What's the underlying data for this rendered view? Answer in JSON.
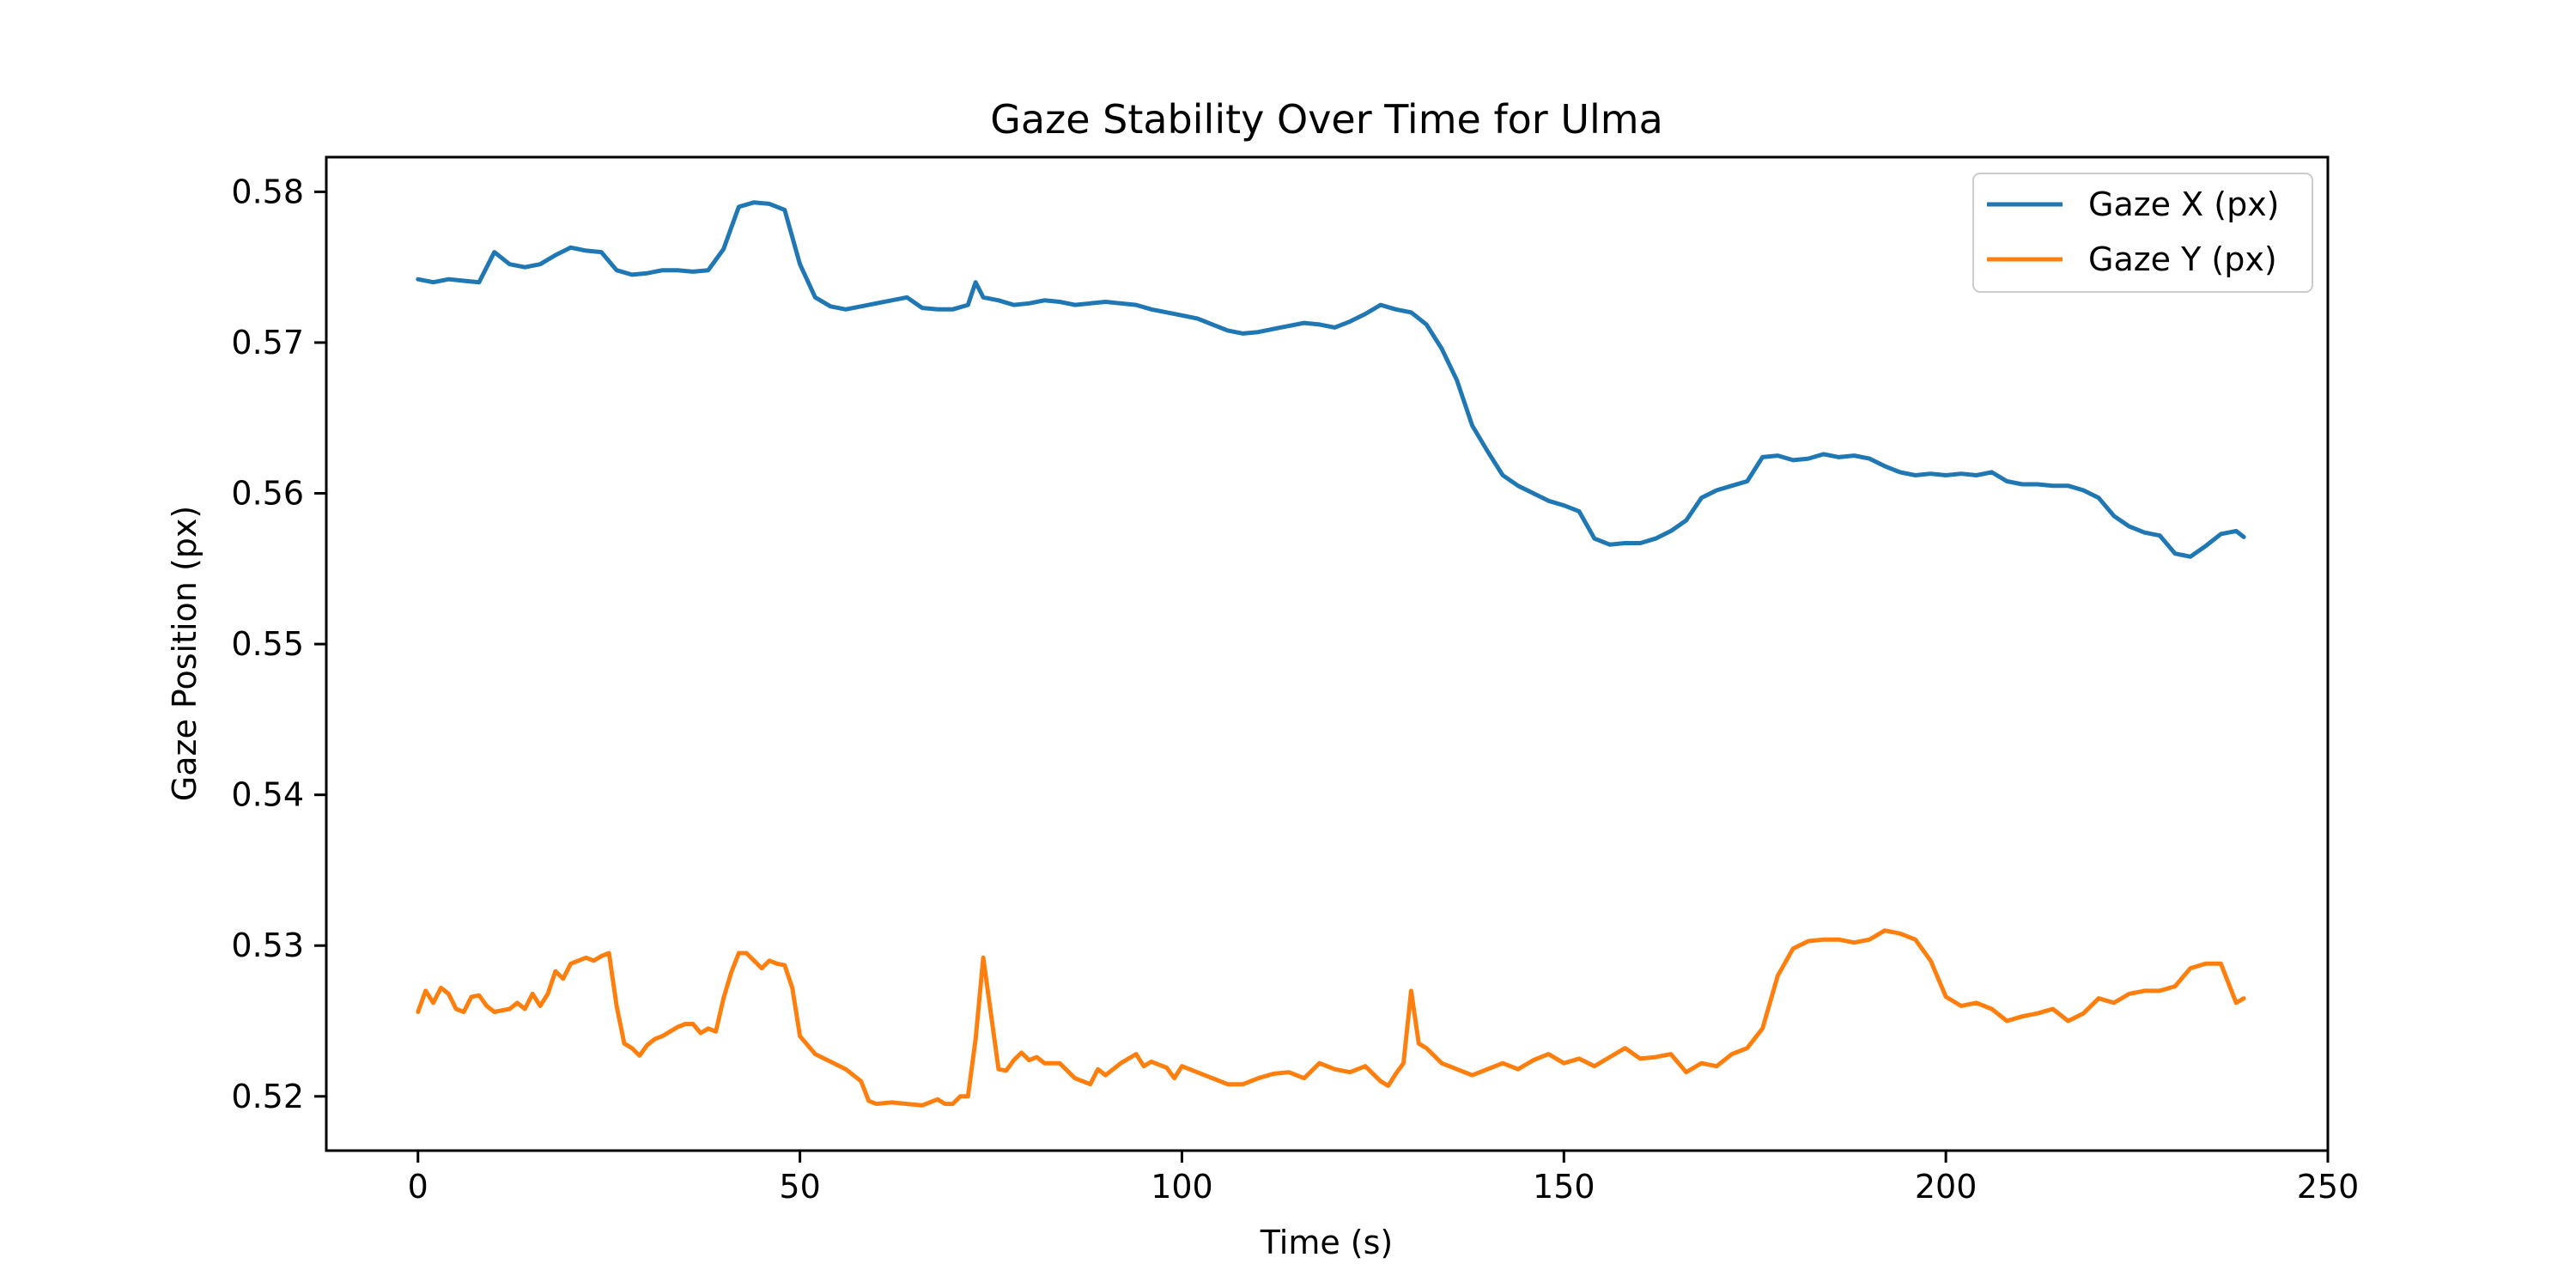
{
  "chart_data": {
    "type": "line",
    "title": "Gaze Stability Over Time for Ulma",
    "xlabel": "Time (s)",
    "ylabel": "Gaze Position (px)",
    "xlim": [
      -12,
      250
    ],
    "ylim": [
      0.5164,
      0.5823
    ],
    "xticks": [
      0,
      50,
      100,
      150,
      200,
      250
    ],
    "yticks": [
      0.52,
      0.53,
      0.54,
      0.55,
      0.56,
      0.57,
      0.58
    ],
    "xtick_labels": [
      "0",
      "50",
      "100",
      "150",
      "200",
      "250"
    ],
    "ytick_labels": [
      "0.52",
      "0.53",
      "0.54",
      "0.55",
      "0.56",
      "0.57",
      "0.58"
    ],
    "grid": false,
    "legend_position": "top-right",
    "series": [
      {
        "name": "Gaze X (px)",
        "color": "#1f77b4",
        "points": [
          [
            0,
            0.5742
          ],
          [
            2,
            0.574
          ],
          [
            4,
            0.5742
          ],
          [
            6,
            0.5741
          ],
          [
            8,
            0.574
          ],
          [
            10,
            0.576
          ],
          [
            12,
            0.5752
          ],
          [
            14,
            0.575
          ],
          [
            16,
            0.5752
          ],
          [
            18,
            0.5758
          ],
          [
            20,
            0.5763
          ],
          [
            22,
            0.5761
          ],
          [
            24,
            0.576
          ],
          [
            26,
            0.5748
          ],
          [
            28,
            0.5745
          ],
          [
            30,
            0.5746
          ],
          [
            32,
            0.5748
          ],
          [
            34,
            0.5748
          ],
          [
            36,
            0.5747
          ],
          [
            38,
            0.5748
          ],
          [
            40,
            0.5762
          ],
          [
            42,
            0.579
          ],
          [
            44,
            0.5793
          ],
          [
            46,
            0.5792
          ],
          [
            48,
            0.5788
          ],
          [
            50,
            0.5752
          ],
          [
            52,
            0.573
          ],
          [
            54,
            0.5724
          ],
          [
            56,
            0.5722
          ],
          [
            58,
            0.5724
          ],
          [
            60,
            0.5726
          ],
          [
            62,
            0.5728
          ],
          [
            64,
            0.573
          ],
          [
            66,
            0.5723
          ],
          [
            68,
            0.5722
          ],
          [
            70,
            0.5722
          ],
          [
            72,
            0.5725
          ],
          [
            73,
            0.574
          ],
          [
            74,
            0.573
          ],
          [
            76,
            0.5728
          ],
          [
            78,
            0.5725
          ],
          [
            80,
            0.5726
          ],
          [
            82,
            0.5728
          ],
          [
            84,
            0.5727
          ],
          [
            86,
            0.5725
          ],
          [
            88,
            0.5726
          ],
          [
            90,
            0.5727
          ],
          [
            92,
            0.5726
          ],
          [
            94,
            0.5725
          ],
          [
            96,
            0.5722
          ],
          [
            98,
            0.572
          ],
          [
            100,
            0.5718
          ],
          [
            102,
            0.5716
          ],
          [
            104,
            0.5712
          ],
          [
            106,
            0.5708
          ],
          [
            108,
            0.5706
          ],
          [
            110,
            0.5707
          ],
          [
            112,
            0.5709
          ],
          [
            114,
            0.5711
          ],
          [
            116,
            0.5713
          ],
          [
            118,
            0.5712
          ],
          [
            120,
            0.571
          ],
          [
            122,
            0.5714
          ],
          [
            124,
            0.5719
          ],
          [
            126,
            0.5725
          ],
          [
            128,
            0.5722
          ],
          [
            130,
            0.572
          ],
          [
            132,
            0.5712
          ],
          [
            134,
            0.5696
          ],
          [
            136,
            0.5675
          ],
          [
            138,
            0.5645
          ],
          [
            140,
            0.5628
          ],
          [
            142,
            0.5612
          ],
          [
            144,
            0.5605
          ],
          [
            146,
            0.56
          ],
          [
            148,
            0.5595
          ],
          [
            150,
            0.5592
          ],
          [
            152,
            0.5588
          ],
          [
            154,
            0.557
          ],
          [
            156,
            0.5566
          ],
          [
            158,
            0.5567
          ],
          [
            160,
            0.5567
          ],
          [
            162,
            0.557
          ],
          [
            164,
            0.5575
          ],
          [
            166,
            0.5582
          ],
          [
            168,
            0.5597
          ],
          [
            170,
            0.5602
          ],
          [
            172,
            0.5605
          ],
          [
            174,
            0.5608
          ],
          [
            176,
            0.5624
          ],
          [
            178,
            0.5625
          ],
          [
            180,
            0.5622
          ],
          [
            182,
            0.5623
          ],
          [
            184,
            0.5626
          ],
          [
            186,
            0.5624
          ],
          [
            188,
            0.5625
          ],
          [
            190,
            0.5623
          ],
          [
            192,
            0.5618
          ],
          [
            194,
            0.5614
          ],
          [
            196,
            0.5612
          ],
          [
            198,
            0.5613
          ],
          [
            200,
            0.5612
          ],
          [
            202,
            0.5613
          ],
          [
            204,
            0.5612
          ],
          [
            206,
            0.5614
          ],
          [
            208,
            0.5608
          ],
          [
            210,
            0.5606
          ],
          [
            212,
            0.5606
          ],
          [
            214,
            0.5605
          ],
          [
            216,
            0.5605
          ],
          [
            218,
            0.5602
          ],
          [
            220,
            0.5597
          ],
          [
            222,
            0.5585
          ],
          [
            224,
            0.5578
          ],
          [
            226,
            0.5574
          ],
          [
            228,
            0.5572
          ],
          [
            230,
            0.556
          ],
          [
            232,
            0.5558
          ],
          [
            234,
            0.5565
          ],
          [
            236,
            0.5573
          ],
          [
            238,
            0.5575
          ],
          [
            239,
            0.5571
          ]
        ]
      },
      {
        "name": "Gaze Y (px)",
        "color": "#ff7f0e",
        "points": [
          [
            0,
            0.5256
          ],
          [
            1,
            0.527
          ],
          [
            2,
            0.5262
          ],
          [
            3,
            0.5272
          ],
          [
            4,
            0.5268
          ],
          [
            5,
            0.5258
          ],
          [
            6,
            0.5256
          ],
          [
            7,
            0.5266
          ],
          [
            8,
            0.5267
          ],
          [
            9,
            0.526
          ],
          [
            10,
            0.5256
          ],
          [
            11,
            0.5257
          ],
          [
            12,
            0.5258
          ],
          [
            13,
            0.5262
          ],
          [
            14,
            0.5258
          ],
          [
            15,
            0.5268
          ],
          [
            16,
            0.526
          ],
          [
            17,
            0.5268
          ],
          [
            18,
            0.5283
          ],
          [
            19,
            0.5278
          ],
          [
            20,
            0.5288
          ],
          [
            21,
            0.529
          ],
          [
            22,
            0.5292
          ],
          [
            23,
            0.529
          ],
          [
            24,
            0.5293
          ],
          [
            25,
            0.5295
          ],
          [
            26,
            0.526
          ],
          [
            27,
            0.5235
          ],
          [
            28,
            0.5232
          ],
          [
            29,
            0.5227
          ],
          [
            30,
            0.5234
          ],
          [
            31,
            0.5238
          ],
          [
            32,
            0.524
          ],
          [
            33,
            0.5243
          ],
          [
            34,
            0.5246
          ],
          [
            35,
            0.5248
          ],
          [
            36,
            0.5248
          ],
          [
            37,
            0.5242
          ],
          [
            38,
            0.5245
          ],
          [
            39,
            0.5243
          ],
          [
            40,
            0.5265
          ],
          [
            41,
            0.5282
          ],
          [
            42,
            0.5295
          ],
          [
            43,
            0.5295
          ],
          [
            44,
            0.529
          ],
          [
            45,
            0.5285
          ],
          [
            46,
            0.529
          ],
          [
            47,
            0.5288
          ],
          [
            48,
            0.5287
          ],
          [
            49,
            0.5272
          ],
          [
            50,
            0.524
          ],
          [
            52,
            0.5228
          ],
          [
            54,
            0.5223
          ],
          [
            56,
            0.5218
          ],
          [
            58,
            0.521
          ],
          [
            59,
            0.5197
          ],
          [
            60,
            0.5195
          ],
          [
            62,
            0.5196
          ],
          [
            64,
            0.5195
          ],
          [
            66,
            0.5194
          ],
          [
            68,
            0.5198
          ],
          [
            69,
            0.5195
          ],
          [
            70,
            0.5195
          ],
          [
            71,
            0.52
          ],
          [
            72,
            0.52
          ],
          [
            73,
            0.5238
          ],
          [
            74,
            0.5292
          ],
          [
            75,
            0.5255
          ],
          [
            76,
            0.5218
          ],
          [
            77,
            0.5217
          ],
          [
            78,
            0.5224
          ],
          [
            79,
            0.5229
          ],
          [
            80,
            0.5224
          ],
          [
            81,
            0.5226
          ],
          [
            82,
            0.5222
          ],
          [
            84,
            0.5222
          ],
          [
            86,
            0.5212
          ],
          [
            88,
            0.5208
          ],
          [
            89,
            0.5218
          ],
          [
            90,
            0.5214
          ],
          [
            92,
            0.5222
          ],
          [
            94,
            0.5228
          ],
          [
            95,
            0.522
          ],
          [
            96,
            0.5223
          ],
          [
            98,
            0.5219
          ],
          [
            99,
            0.5212
          ],
          [
            100,
            0.522
          ],
          [
            102,
            0.5216
          ],
          [
            104,
            0.5212
          ],
          [
            106,
            0.5208
          ],
          [
            108,
            0.5208
          ],
          [
            110,
            0.5212
          ],
          [
            112,
            0.5215
          ],
          [
            114,
            0.5216
          ],
          [
            116,
            0.5212
          ],
          [
            118,
            0.5222
          ],
          [
            120,
            0.5218
          ],
          [
            122,
            0.5216
          ],
          [
            124,
            0.522
          ],
          [
            126,
            0.521
          ],
          [
            127,
            0.5207
          ],
          [
            128,
            0.5215
          ],
          [
            129,
            0.5222
          ],
          [
            130,
            0.527
          ],
          [
            131,
            0.5235
          ],
          [
            132,
            0.5232
          ],
          [
            134,
            0.5222
          ],
          [
            136,
            0.5218
          ],
          [
            138,
            0.5214
          ],
          [
            140,
            0.5218
          ],
          [
            142,
            0.5222
          ],
          [
            144,
            0.5218
          ],
          [
            146,
            0.5224
          ],
          [
            148,
            0.5228
          ],
          [
            150,
            0.5222
          ],
          [
            152,
            0.5225
          ],
          [
            154,
            0.522
          ],
          [
            156,
            0.5226
          ],
          [
            158,
            0.5232
          ],
          [
            160,
            0.5225
          ],
          [
            162,
            0.5226
          ],
          [
            164,
            0.5228
          ],
          [
            166,
            0.5216
          ],
          [
            168,
            0.5222
          ],
          [
            170,
            0.522
          ],
          [
            172,
            0.5228
          ],
          [
            174,
            0.5232
          ],
          [
            176,
            0.5245
          ],
          [
            178,
            0.528
          ],
          [
            180,
            0.5298
          ],
          [
            182,
            0.5303
          ],
          [
            184,
            0.5304
          ],
          [
            186,
            0.5304
          ],
          [
            188,
            0.5302
          ],
          [
            190,
            0.5304
          ],
          [
            192,
            0.531
          ],
          [
            194,
            0.5308
          ],
          [
            196,
            0.5304
          ],
          [
            198,
            0.529
          ],
          [
            200,
            0.5266
          ],
          [
            202,
            0.526
          ],
          [
            204,
            0.5262
          ],
          [
            206,
            0.5258
          ],
          [
            208,
            0.525
          ],
          [
            210,
            0.5253
          ],
          [
            212,
            0.5255
          ],
          [
            214,
            0.5258
          ],
          [
            216,
            0.525
          ],
          [
            218,
            0.5255
          ],
          [
            220,
            0.5265
          ],
          [
            222,
            0.5262
          ],
          [
            224,
            0.5268
          ],
          [
            226,
            0.527
          ],
          [
            228,
            0.527
          ],
          [
            230,
            0.5273
          ],
          [
            232,
            0.5285
          ],
          [
            234,
            0.5288
          ],
          [
            236,
            0.5288
          ],
          [
            238,
            0.5262
          ],
          [
            239,
            0.5265
          ]
        ]
      }
    ]
  }
}
